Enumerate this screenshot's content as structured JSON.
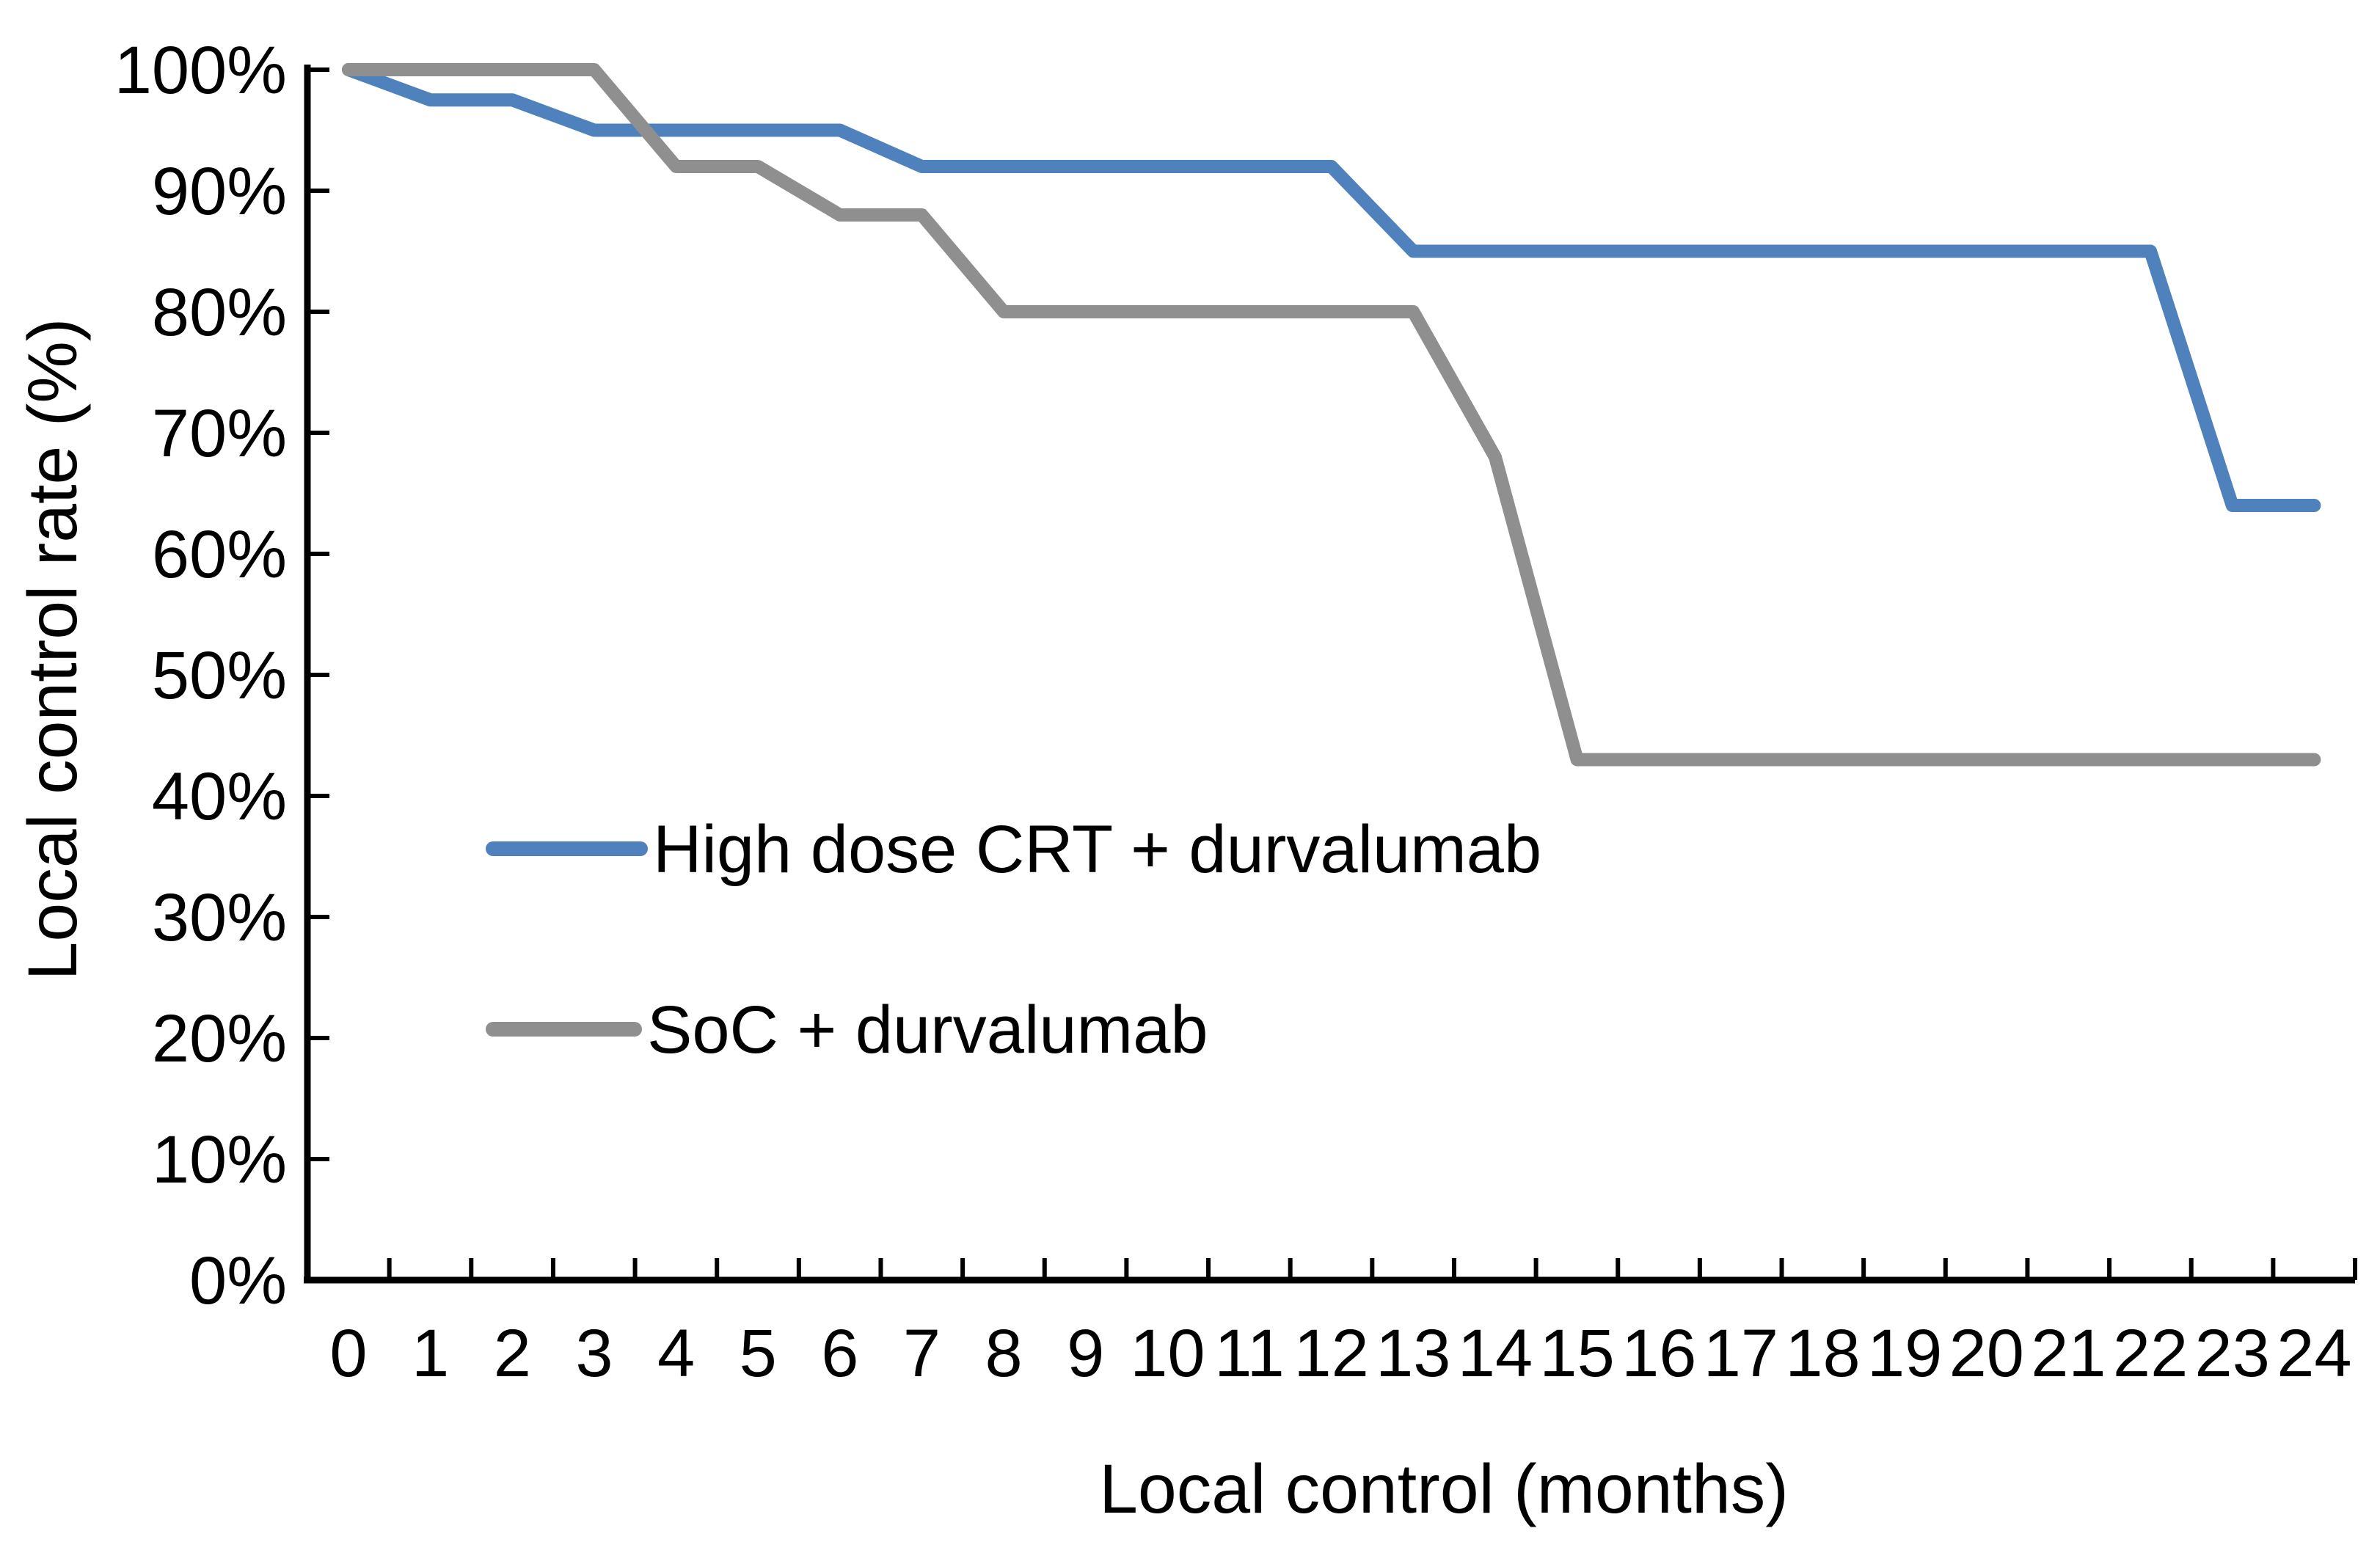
{
  "chart_data": {
    "type": "line",
    "title": "",
    "xlabel": "Local control (months)",
    "ylabel": "Local control rate (%)",
    "x": [
      0,
      1,
      2,
      3,
      4,
      5,
      6,
      7,
      8,
      9,
      10,
      11,
      12,
      13,
      14,
      15,
      16,
      17,
      18,
      19,
      20,
      21,
      22,
      23,
      24
    ],
    "x_tick_labels": [
      "0",
      "1",
      "2",
      "3",
      "4",
      "5",
      "6",
      "7",
      "8",
      "9",
      "10",
      "11",
      "12",
      "13",
      "14",
      "15",
      "16",
      "17",
      "18",
      "19",
      "20",
      "21",
      "22",
      "23",
      "24"
    ],
    "y_ticks": [
      0,
      10,
      20,
      30,
      40,
      50,
      60,
      70,
      80,
      90,
      100
    ],
    "y_tick_suffix": "%",
    "ylim": [
      0,
      100
    ],
    "grid": false,
    "legend_position": "inside-left-middle",
    "series": [
      {
        "name": "High dose CRT + durvalumab",
        "color": "#4F81BD",
        "values": [
          100,
          97.5,
          97.5,
          95,
          95,
          95,
          95,
          92,
          92,
          92,
          92,
          92,
          92,
          85,
          85,
          85,
          85,
          85,
          85,
          85,
          85,
          85,
          85,
          64,
          64
        ]
      },
      {
        "name": "SoC + durvalumab",
        "color": "#8F8F8F",
        "values": [
          100,
          100,
          100,
          100,
          92,
          92,
          88,
          88,
          80,
          80,
          80,
          80,
          80,
          80,
          68,
          43,
          43,
          43,
          43,
          43,
          43,
          43,
          43,
          43,
          43
        ]
      }
    ]
  },
  "colors": {
    "axis": "#000000",
    "text": "#000000",
    "background": "#FFFFFF"
  }
}
